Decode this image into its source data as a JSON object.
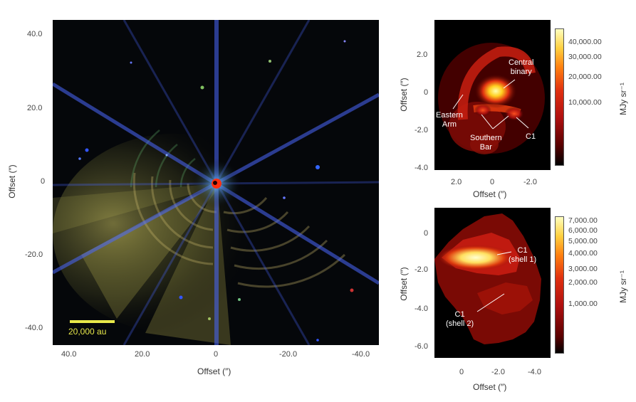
{
  "left_panel": {
    "y_ticks": [
      "40.0",
      "20.0",
      "0",
      "-20.0",
      "-40.0"
    ],
    "x_ticks": [
      "40.0",
      "20.0",
      "0",
      "-20.0",
      "-40.0"
    ],
    "xlabel": "Offset (″)",
    "ylabel": "Offset (″)",
    "scale_bar_label": "20,000 au"
  },
  "top_right_panel": {
    "y_ticks": [
      "2.0",
      "0",
      "-2.0",
      "-4.0"
    ],
    "x_ticks": [
      "2.0",
      "0",
      "-2.0"
    ],
    "xlabel": "Offset (″)",
    "ylabel": "Offset (″)",
    "annotations": {
      "central_binary": [
        "Central",
        "binary"
      ],
      "eastern_arm": [
        "Eastern",
        "Arm"
      ],
      "southern_bar": [
        "Southern",
        "Bar"
      ],
      "c1": "C1"
    },
    "colorbar_ticks": [
      "40,000.00",
      "30,000.00",
      "20,000.00",
      "10,000.00"
    ],
    "colorbar_label": "MJy sr⁻¹"
  },
  "bottom_right_panel": {
    "y_ticks": [
      "0",
      "-2.0",
      "-4.0",
      "-6.0"
    ],
    "x_ticks": [
      "0",
      "-2.0",
      "-4.0"
    ],
    "xlabel": "Offset (″)",
    "ylabel": "Offset (″)",
    "annotations": {
      "c1_shell1": [
        "C1",
        "(shell 1)"
      ],
      "c1_shell2": [
        "C1",
        "(shell 2)"
      ]
    },
    "colorbar_ticks": [
      "7,000.00",
      "6,000.00",
      "5,000.00",
      "4,000.00",
      "3,000.00",
      "2,000.00",
      "1,000.00"
    ],
    "colorbar_label": "MJy sr⁻¹"
  },
  "colors": {
    "scale_bar": "#e8e84a",
    "heat_low": "#000000",
    "heat_mid": "#d01010",
    "heat_high": "#ffff80"
  }
}
